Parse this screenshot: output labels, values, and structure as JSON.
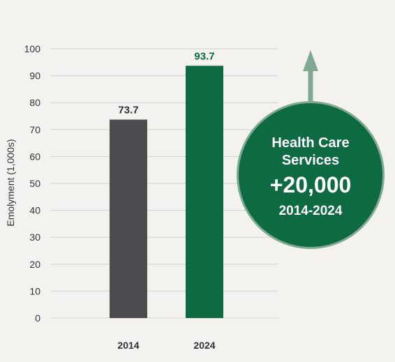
{
  "chart_data": {
    "type": "bar",
    "categories": [
      "2014",
      "2024"
    ],
    "values": [
      73.7,
      93.7
    ],
    "data_labels": [
      "73.7",
      "93.7"
    ],
    "ylabel": "Emolyment (1,000s)",
    "xlabel": "",
    "ylim": [
      0,
      100
    ],
    "yticks": [
      "0",
      "10",
      "20",
      "30",
      "40",
      "50",
      "60",
      "70",
      "80",
      "90",
      "100"
    ],
    "grid": true,
    "colors": [
      "#4b4b50",
      "#0e6a43"
    ],
    "label_colors": [
      "#333333",
      "#0e6a43"
    ]
  },
  "callout": {
    "line1": "Health Care",
    "line2": "Services",
    "change": "+20,000",
    "period": "2014-2024",
    "fill": "#0e6a43",
    "border": "#7fa990",
    "arrow_color": "#7fa990",
    "arrow_icon": "up-arrow-icon"
  }
}
